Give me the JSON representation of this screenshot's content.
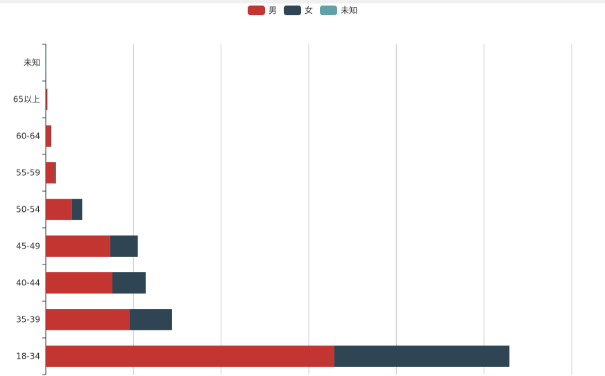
{
  "chart_data": {
    "type": "bar",
    "orientation": "horizontal",
    "stacked": true,
    "categories": [
      "18-34",
      "35-39",
      "40-44",
      "45-49",
      "50-54",
      "55-59",
      "60-64",
      "65以上",
      "未知"
    ],
    "series": [
      {
        "name": "男",
        "color": "#c23531",
        "values": [
          3290,
          955,
          760,
          735,
          300,
          100,
          55,
          12,
          0
        ]
      },
      {
        "name": "女",
        "color": "#2f4554",
        "values": [
          2000,
          485,
          380,
          315,
          115,
          15,
          8,
          3,
          0
        ]
      },
      {
        "name": "未知",
        "color": "#61a0a8",
        "values": [
          0,
          0,
          0,
          0,
          0,
          0,
          0,
          0,
          5
        ]
      }
    ],
    "xlim": [
      0,
      6000
    ],
    "grid": true,
    "legend": "top-center",
    "title": "",
    "xlabel": "",
    "ylabel": ""
  }
}
